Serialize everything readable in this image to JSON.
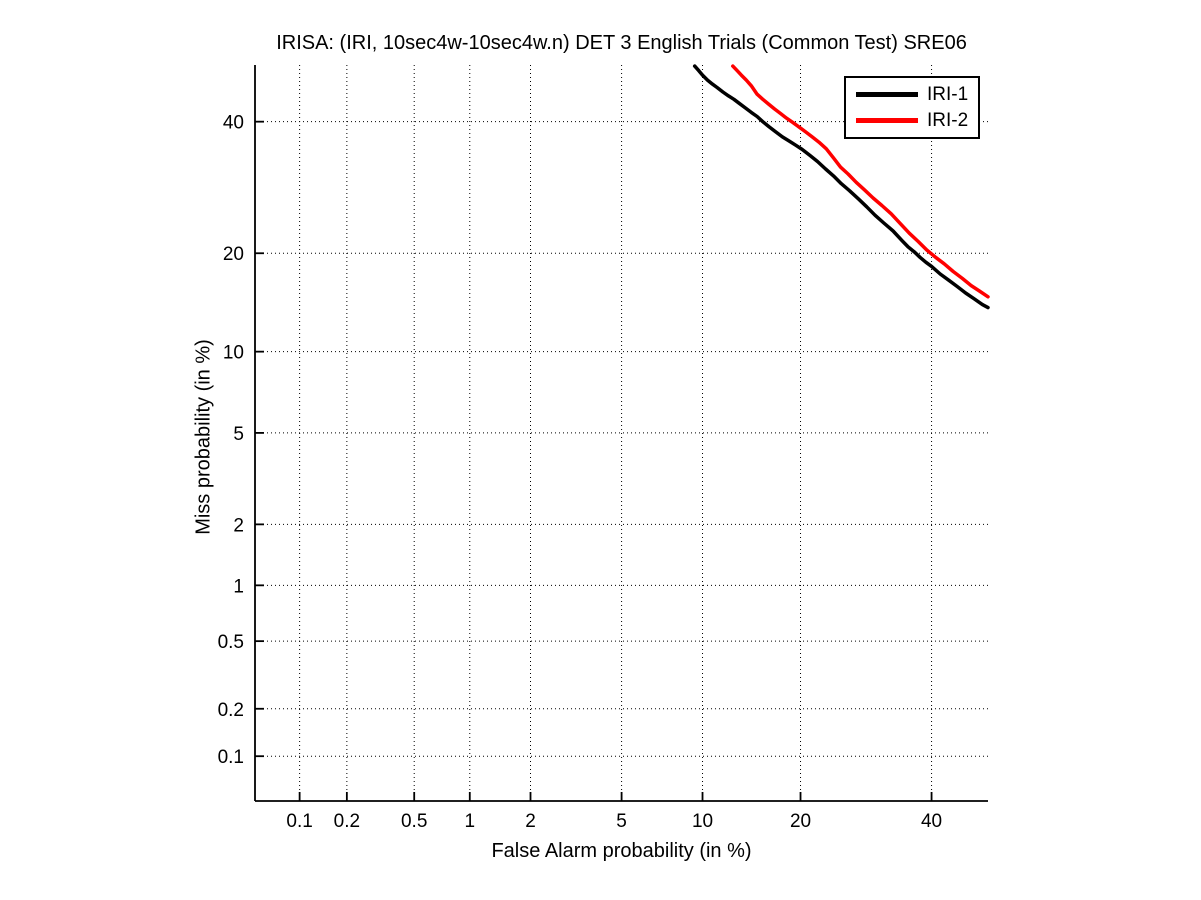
{
  "figure": {
    "background_color": "#ffffff",
    "axis_color": "#000000",
    "grid_style": "dotted"
  },
  "chart_data": {
    "type": "line",
    "scale": "probit-probit (DET curve)",
    "title": "IRISA: (IRI, 10sec4w-10sec4w.n) DET 3 English Trials (Common Test) SRE06",
    "xlabel": "False Alarm probability (in %)",
    "ylabel": "Miss probability (in %)",
    "xlim": [
      0.05,
      50
    ],
    "ylim": [
      0.05,
      50
    ],
    "xticks": [
      0.1,
      0.2,
      0.5,
      1,
      2,
      5,
      10,
      20,
      40
    ],
    "xtick_labels": [
      "0.1",
      "0.2",
      "0.5",
      "1",
      "2",
      "5",
      "10",
      "20",
      "40"
    ],
    "yticks": [
      0.1,
      0.2,
      0.5,
      1,
      2,
      5,
      10,
      20,
      40
    ],
    "ytick_labels": [
      "0.1",
      "0.2",
      "0.5",
      "1",
      "2",
      "5",
      "10",
      "20",
      "40"
    ],
    "grid": "on",
    "legend_position": "northeast",
    "series": [
      {
        "name": "IRI-1",
        "color": "#000000",
        "points": [
          [
            9.4,
            49.8
          ],
          [
            9.7,
            49.0
          ],
          [
            10.0,
            48.2
          ],
          [
            10.4,
            47.3
          ],
          [
            10.8,
            46.6
          ],
          [
            11.2,
            46.0
          ],
          [
            11.7,
            45.2
          ],
          [
            12.2,
            44.5
          ],
          [
            12.7,
            43.9
          ],
          [
            13.2,
            43.2
          ],
          [
            13.8,
            42.4
          ],
          [
            14.4,
            41.6
          ],
          [
            15.0,
            40.9
          ],
          [
            15.6,
            40.0
          ],
          [
            16.3,
            39.1
          ],
          [
            17.0,
            38.3
          ],
          [
            17.8,
            37.4
          ],
          [
            18.6,
            36.7
          ],
          [
            19.4,
            36.0
          ],
          [
            20.2,
            35.3
          ],
          [
            21.2,
            34.3
          ],
          [
            22.2,
            33.3
          ],
          [
            23.3,
            32.1
          ],
          [
            24.4,
            31.0
          ],
          [
            25.5,
            29.8
          ],
          [
            26.7,
            28.7
          ],
          [
            28.0,
            27.5
          ],
          [
            29.3,
            26.3
          ],
          [
            30.6,
            25.1
          ],
          [
            32.0,
            24.0
          ],
          [
            33.5,
            22.9
          ],
          [
            35.0,
            21.6
          ],
          [
            36.0,
            20.8
          ],
          [
            37.0,
            20.2
          ],
          [
            38.0,
            19.5
          ],
          [
            39.0,
            18.9
          ],
          [
            40.0,
            18.4
          ],
          [
            41.5,
            17.5
          ],
          [
            43.0,
            16.8
          ],
          [
            44.5,
            16.1
          ],
          [
            46.0,
            15.4
          ],
          [
            47.5,
            14.8
          ],
          [
            49.0,
            14.2
          ],
          [
            50.0,
            13.9
          ]
        ]
      },
      {
        "name": "IRI-2",
        "color": "#ff0000",
        "points": [
          [
            12.6,
            49.8
          ],
          [
            13.0,
            49.0
          ],
          [
            13.4,
            48.2
          ],
          [
            13.9,
            47.3
          ],
          [
            14.4,
            46.3
          ],
          [
            15.0,
            44.8
          ],
          [
            15.6,
            43.9
          ],
          [
            16.2,
            43.1
          ],
          [
            16.9,
            42.2
          ],
          [
            17.6,
            41.4
          ],
          [
            18.3,
            40.6
          ],
          [
            19.0,
            39.9
          ],
          [
            19.8,
            39.1
          ],
          [
            20.6,
            38.3
          ],
          [
            21.5,
            37.4
          ],
          [
            22.4,
            36.5
          ],
          [
            23.4,
            35.4
          ],
          [
            24.4,
            33.9
          ],
          [
            25.4,
            32.4
          ],
          [
            26.5,
            31.3
          ],
          [
            27.7,
            30.0
          ],
          [
            29.0,
            28.8
          ],
          [
            30.3,
            27.6
          ],
          [
            31.7,
            26.5
          ],
          [
            33.2,
            25.3
          ],
          [
            34.7,
            23.9
          ],
          [
            36.2,
            22.6
          ],
          [
            37.7,
            21.5
          ],
          [
            39.2,
            20.4
          ],
          [
            40.7,
            19.5
          ],
          [
            42.2,
            18.7
          ],
          [
            43.8,
            17.8
          ],
          [
            45.4,
            17.0
          ],
          [
            47.0,
            16.2
          ],
          [
            48.5,
            15.6
          ],
          [
            50.0,
            15.0
          ]
        ]
      }
    ]
  },
  "legend": {
    "items": [
      {
        "label": "IRI-1",
        "color": "#000000"
      },
      {
        "label": "IRI-2",
        "color": "#ff0000"
      }
    ]
  }
}
